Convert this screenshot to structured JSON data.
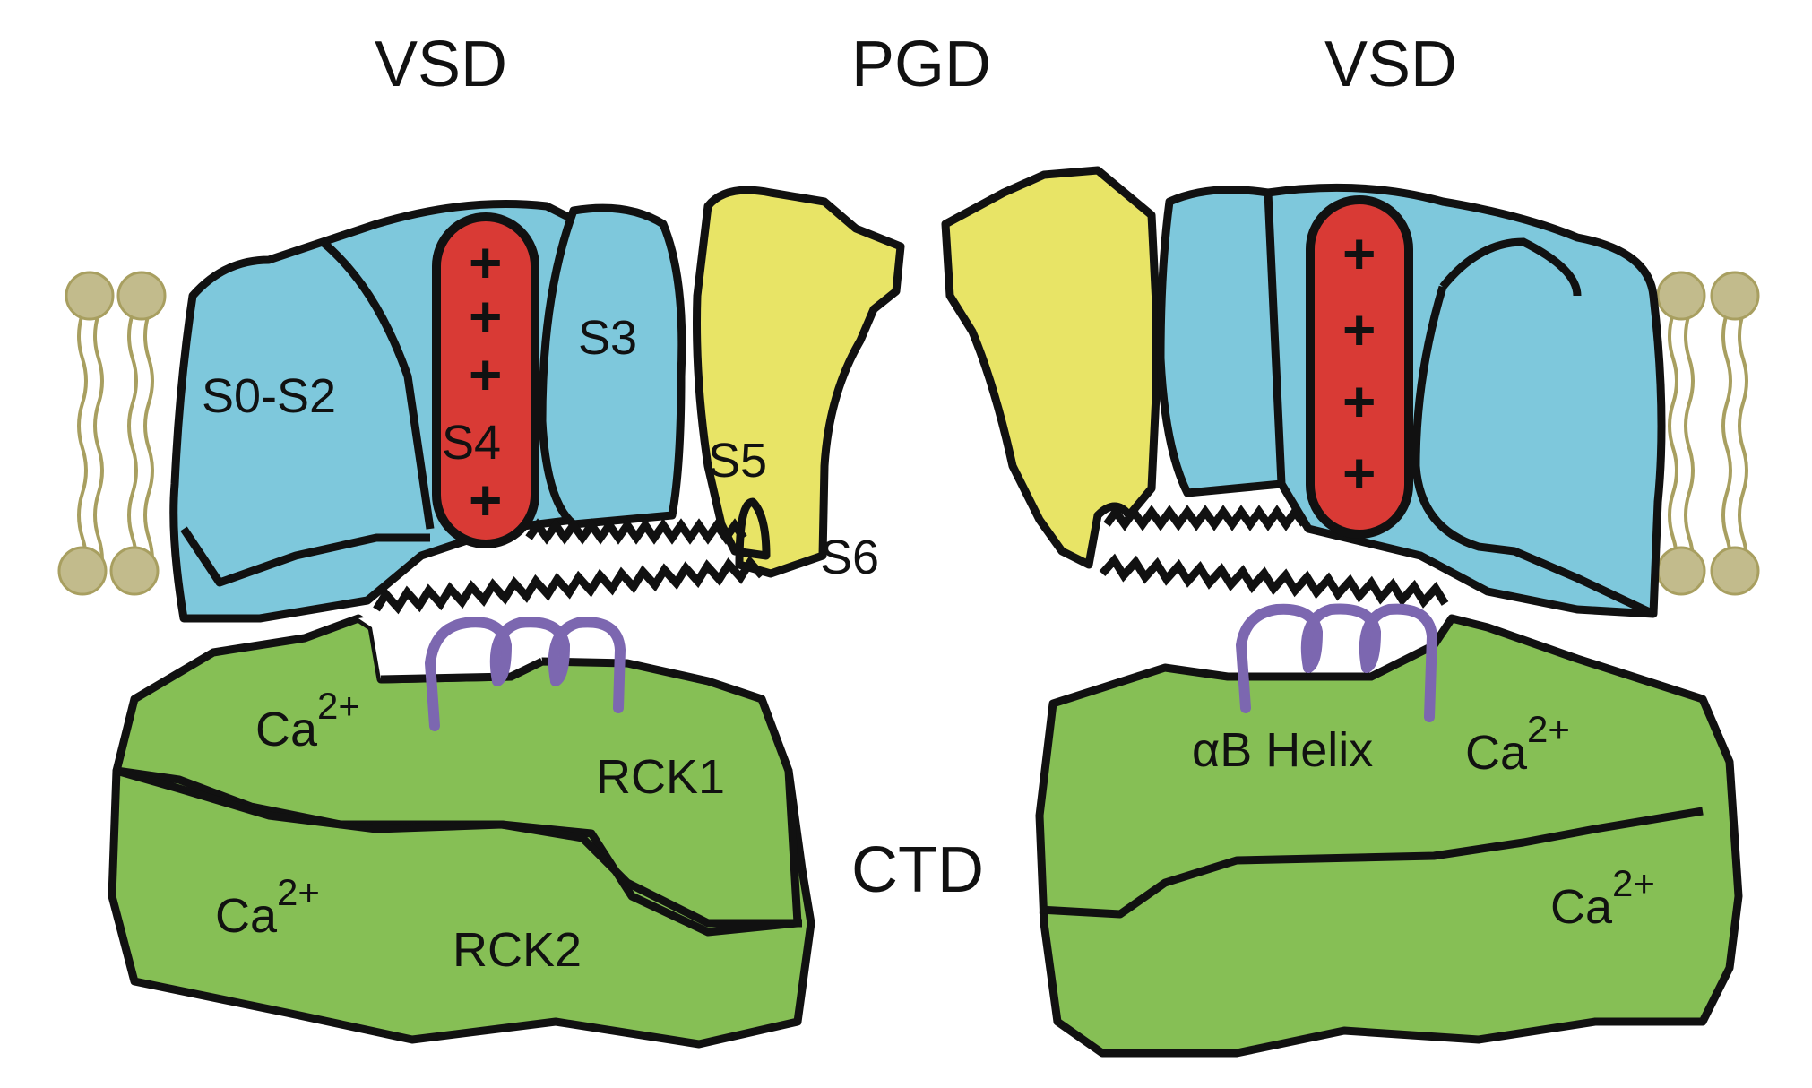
{
  "headings": {
    "vsd_left": "VSD",
    "pgd": "PGD",
    "vsd_right": "VSD",
    "ctd": "CTD"
  },
  "left": {
    "s0s2": "S0-S2",
    "s3": "S3",
    "s4": "S4",
    "s5": "S5",
    "s6": "S6",
    "rck1": "RCK1",
    "rck2": "RCK2",
    "ca_top_base": "Ca",
    "ca_top_sup": "2+",
    "ca_bottom_base": "Ca",
    "ca_bottom_sup": "2+"
  },
  "right": {
    "alphaB": "αB Helix",
    "ca_top_base": "Ca",
    "ca_top_sup": "2+",
    "ca_bottom_base": "Ca",
    "ca_bottom_sup": "2+"
  },
  "charge_symbol": "+",
  "colors": {
    "vsd": "#7ec8dc",
    "s4": "#d93a35",
    "pgd": "#e8e466",
    "ctd": "#86bf55",
    "alpha_helix": "#7c67b0",
    "lipid": "#c0b98a",
    "outline": "#111111"
  }
}
